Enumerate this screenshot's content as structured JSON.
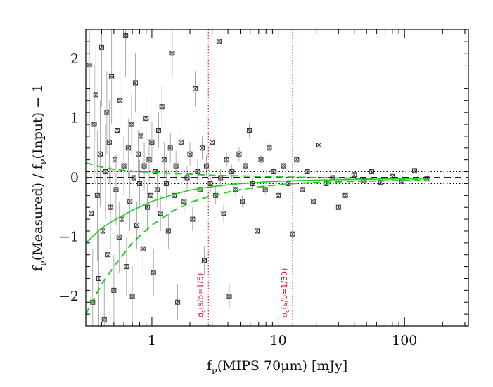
{
  "chart_data": {
    "type": "scatter",
    "title": "",
    "xlabel": "f_ν(MIPS 70μm) [mJy]",
    "xlabel_parts": {
      "pre": "f",
      "sub": "ν",
      "post": "(MIPS 70μm) [mJy]"
    },
    "ylabel": "f_ν(Measured) / f_ν(Input) − 1",
    "ylabel_parts": {
      "f1": "f",
      "sub1": "ν",
      "mid": "(Measured) / ",
      "f2": "f",
      "sub2": "ν",
      "post": "(Input) − 1"
    },
    "x_scale": "log",
    "xlim": [
      0.3,
      320
    ],
    "ylim": [
      -2.5,
      2.5
    ],
    "x_ticks": [
      1,
      10,
      100
    ],
    "x_tick_labels": [
      "1",
      "10",
      "100"
    ],
    "y_ticks": [
      -2,
      -1,
      0,
      1,
      2
    ],
    "y_tick_labels": [
      "−2",
      "−1",
      "0",
      "1",
      "2"
    ],
    "grid": false,
    "colors": {
      "points": "#333333",
      "errorbars": "#9a9a9a",
      "fit": "#22cc22",
      "limits": "#e0102a",
      "reference": "#000000"
    },
    "vertical_lines": [
      {
        "x": 2.8,
        "label": "σc(s/b=1/5)",
        "label_parts": {
          "s": "σ",
          "sub": "c",
          "rest": "(s/b=1/5)"
        },
        "style": "dotted"
      },
      {
        "x": 13,
        "label": "σc(s/b=1/30)",
        "label_parts": {
          "s": "σ",
          "sub": "c",
          "rest": "(s/b=1/30)"
        },
        "style": "dotted"
      }
    ],
    "horizontal_lines": [
      {
        "y": 0,
        "style": "dashed",
        "color": "#000000"
      },
      {
        "y": 0.1,
        "style": "dotted",
        "color": "#000000"
      },
      {
        "y": -0.1,
        "style": "dotted",
        "color": "#000000"
      }
    ],
    "fit_curves": {
      "median": {
        "x": [
          0.3,
          0.4,
          0.5,
          0.7,
          1,
          1.5,
          2,
          3,
          5,
          8,
          13,
          20,
          40,
          80,
          150
        ],
        "y": [
          -1.1,
          -0.85,
          -0.72,
          -0.55,
          -0.4,
          -0.28,
          -0.21,
          -0.15,
          -0.1,
          -0.07,
          -0.05,
          -0.04,
          -0.03,
          -0.02,
          -0.01
        ]
      },
      "upper": {
        "x": [
          0.3,
          0.4,
          0.5,
          0.7,
          1,
          1.5,
          2,
          3,
          5,
          8,
          13,
          20,
          40,
          80,
          150
        ],
        "y": [
          0.25,
          0.18,
          0.14,
          0.11,
          0.09,
          0.07,
          0.06,
          0.04,
          0.03,
          0.02,
          0.01,
          0.0,
          -0.01,
          -0.02,
          -0.02
        ]
      },
      "lower": {
        "x": [
          0.3,
          0.4,
          0.5,
          0.7,
          1,
          1.5,
          2,
          3,
          5,
          8,
          13,
          20,
          40,
          80,
          150
        ],
        "y": [
          -2.3,
          -1.8,
          -1.5,
          -1.1,
          -0.8,
          -0.55,
          -0.42,
          -0.3,
          -0.2,
          -0.14,
          -0.1,
          -0.08,
          -0.06,
          -0.05,
          -0.04
        ]
      }
    },
    "points": [
      {
        "x": 0.32,
        "y": 1.9,
        "err": 1.2
      },
      {
        "x": 0.33,
        "y": -0.6,
        "err": 1.4
      },
      {
        "x": 0.34,
        "y": -2.1,
        "err": 0.9
      },
      {
        "x": 0.35,
        "y": 0.9,
        "err": 1.0
      },
      {
        "x": 0.36,
        "y": 1.4,
        "err": 0.8
      },
      {
        "x": 0.37,
        "y": -0.3,
        "err": 1.1
      },
      {
        "x": 0.38,
        "y": -1.7,
        "err": 0.8
      },
      {
        "x": 0.39,
        "y": 0.4,
        "err": 0.9
      },
      {
        "x": 0.4,
        "y": 2.2,
        "err": 1.0
      },
      {
        "x": 0.41,
        "y": -0.9,
        "err": 1.0
      },
      {
        "x": 0.42,
        "y": -2.4,
        "err": 0.7
      },
      {
        "x": 0.43,
        "y": 0.1,
        "err": 0.8
      },
      {
        "x": 0.44,
        "y": 1.1,
        "err": 0.7
      },
      {
        "x": 0.45,
        "y": -1.3,
        "err": 0.8
      },
      {
        "x": 0.46,
        "y": 0.6,
        "err": 0.7
      },
      {
        "x": 0.47,
        "y": -0.5,
        "err": 0.7
      },
      {
        "x": 0.48,
        "y": 1.7,
        "err": 0.8
      },
      {
        "x": 0.5,
        "y": -1.9,
        "err": 0.6
      },
      {
        "x": 0.51,
        "y": 0.3,
        "err": 0.6
      },
      {
        "x": 0.52,
        "y": -0.2,
        "err": 0.6
      },
      {
        "x": 0.53,
        "y": 0.8,
        "err": 0.6
      },
      {
        "x": 0.55,
        "y": -1.0,
        "err": 0.6
      },
      {
        "x": 0.56,
        "y": 1.3,
        "err": 0.6
      },
      {
        "x": 0.58,
        "y": -0.7,
        "err": 0.5
      },
      {
        "x": 0.6,
        "y": 0.2,
        "err": 0.5
      },
      {
        "x": 0.62,
        "y": 2.4,
        "err": 0.7
      },
      {
        "x": 0.63,
        "y": -1.5,
        "err": 0.5
      },
      {
        "x": 0.65,
        "y": 0.5,
        "err": 0.5
      },
      {
        "x": 0.67,
        "y": -0.4,
        "err": 0.5
      },
      {
        "x": 0.69,
        "y": 0.9,
        "err": 0.5
      },
      {
        "x": 0.7,
        "y": -2.0,
        "err": 0.5
      },
      {
        "x": 0.72,
        "y": 0.0,
        "err": 0.4
      },
      {
        "x": 0.74,
        "y": 1.6,
        "err": 0.5
      },
      {
        "x": 0.76,
        "y": -0.8,
        "err": 0.4
      },
      {
        "x": 0.78,
        "y": 0.4,
        "err": 0.4
      },
      {
        "x": 0.8,
        "y": -0.1,
        "err": 0.4
      },
      {
        "x": 0.82,
        "y": 0.7,
        "err": 0.4
      },
      {
        "x": 0.85,
        "y": -1.2,
        "err": 0.4
      },
      {
        "x": 0.87,
        "y": 0.2,
        "err": 0.4
      },
      {
        "x": 0.9,
        "y": 1.0,
        "err": 0.4
      },
      {
        "x": 0.92,
        "y": -0.5,
        "err": 0.4
      },
      {
        "x": 0.95,
        "y": 0.3,
        "err": 0.35
      },
      {
        "x": 0.98,
        "y": -0.3,
        "err": 0.35
      },
      {
        "x": 1.0,
        "y": 0.6,
        "err": 0.35
      },
      {
        "x": 1.03,
        "y": -1.6,
        "err": 0.4
      },
      {
        "x": 1.06,
        "y": 0.1,
        "err": 0.3
      },
      {
        "x": 1.1,
        "y": -0.2,
        "err": 0.3
      },
      {
        "x": 1.13,
        "y": 0.8,
        "err": 0.3
      },
      {
        "x": 1.17,
        "y": -0.6,
        "err": 0.3
      },
      {
        "x": 1.2,
        "y": 1.2,
        "err": 0.35
      },
      {
        "x": 1.25,
        "y": 0.3,
        "err": 0.3
      },
      {
        "x": 1.3,
        "y": -0.1,
        "err": 0.25
      },
      {
        "x": 1.35,
        "y": -0.9,
        "err": 0.3
      },
      {
        "x": 1.4,
        "y": 0.5,
        "err": 0.25
      },
      {
        "x": 1.45,
        "y": 2.1,
        "err": 0.4
      },
      {
        "x": 1.5,
        "y": -0.3,
        "err": 0.25
      },
      {
        "x": 1.55,
        "y": 0.2,
        "err": 0.25
      },
      {
        "x": 1.6,
        "y": -2.1,
        "err": 0.3
      },
      {
        "x": 1.7,
        "y": 0.6,
        "err": 0.25
      },
      {
        "x": 1.8,
        "y": -0.4,
        "err": 0.2
      },
      {
        "x": 1.9,
        "y": 0.0,
        "err": 0.2
      },
      {
        "x": 2.0,
        "y": 0.4,
        "err": 0.2
      },
      {
        "x": 2.1,
        "y": -0.7,
        "err": 0.2
      },
      {
        "x": 2.2,
        "y": 1.5,
        "err": 0.3
      },
      {
        "x": 2.3,
        "y": 0.1,
        "err": 0.2
      },
      {
        "x": 2.4,
        "y": -0.2,
        "err": 0.2
      },
      {
        "x": 2.5,
        "y": 0.5,
        "err": 0.2
      },
      {
        "x": 2.6,
        "y": -1.4,
        "err": 0.25
      },
      {
        "x": 2.7,
        "y": 0.2,
        "err": 0.18
      },
      {
        "x": 2.9,
        "y": -0.1,
        "err": 0.15
      },
      {
        "x": 3.0,
        "y": 0.6,
        "err": 0.18
      },
      {
        "x": 3.2,
        "y": -0.3,
        "err": 0.15
      },
      {
        "x": 3.4,
        "y": 2.3,
        "err": 0.3
      },
      {
        "x": 3.5,
        "y": 0.0,
        "err": 0.15
      },
      {
        "x": 3.7,
        "y": -0.6,
        "err": 0.15
      },
      {
        "x": 3.9,
        "y": 0.3,
        "err": 0.12
      },
      {
        "x": 4.1,
        "y": -2.0,
        "err": 0.2
      },
      {
        "x": 4.3,
        "y": 0.1,
        "err": 0.12
      },
      {
        "x": 4.6,
        "y": -0.2,
        "err": 0.12
      },
      {
        "x": 4.9,
        "y": 0.4,
        "err": 0.12
      },
      {
        "x": 5.2,
        "y": -0.4,
        "err": 0.1
      },
      {
        "x": 5.5,
        "y": 0.2,
        "err": 0.1
      },
      {
        "x": 5.9,
        "y": 0.8,
        "err": 0.12
      },
      {
        "x": 6.3,
        "y": -0.1,
        "err": 0.1
      },
      {
        "x": 6.8,
        "y": -0.9,
        "err": 0.12
      },
      {
        "x": 7.3,
        "y": 0.3,
        "err": 0.08
      },
      {
        "x": 7.9,
        "y": -0.2,
        "err": 0.08
      },
      {
        "x": 8.5,
        "y": 0.5,
        "err": 0.08
      },
      {
        "x": 9.2,
        "y": 0.1,
        "err": 0.07
      },
      {
        "x": 10,
        "y": -0.3,
        "err": 0.07
      },
      {
        "x": 11,
        "y": 0.2,
        "err": 0.06
      },
      {
        "x": 12,
        "y": -0.1,
        "err": 0.06
      },
      {
        "x": 13,
        "y": -0.95,
        "err": 0.08
      },
      {
        "x": 14,
        "y": 0.3,
        "err": 0.05
      },
      {
        "x": 15.5,
        "y": -0.2,
        "err": 0.05
      },
      {
        "x": 17,
        "y": 0.1,
        "err": 0.05
      },
      {
        "x": 19,
        "y": -0.4,
        "err": 0.05
      },
      {
        "x": 21,
        "y": 0.55,
        "err": 0.05
      },
      {
        "x": 24,
        "y": -0.1,
        "err": 0.04
      },
      {
        "x": 27,
        "y": 0.0,
        "err": 0.04
      },
      {
        "x": 30,
        "y": -0.5,
        "err": 0.04
      },
      {
        "x": 34,
        "y": -0.3,
        "err": 0.04
      },
      {
        "x": 40,
        "y": 0.05,
        "err": 0.03
      },
      {
        "x": 48,
        "y": -0.05,
        "err": 0.03
      },
      {
        "x": 55,
        "y": 0.1,
        "err": 0.03
      },
      {
        "x": 65,
        "y": -0.08,
        "err": 0.03
      },
      {
        "x": 80,
        "y": 0.02,
        "err": 0.02
      },
      {
        "x": 95,
        "y": -0.06,
        "err": 0.02
      },
      {
        "x": 120,
        "y": 0.12,
        "err": 0.02
      },
      {
        "x": 150,
        "y": -0.02,
        "err": 0.02
      }
    ]
  }
}
